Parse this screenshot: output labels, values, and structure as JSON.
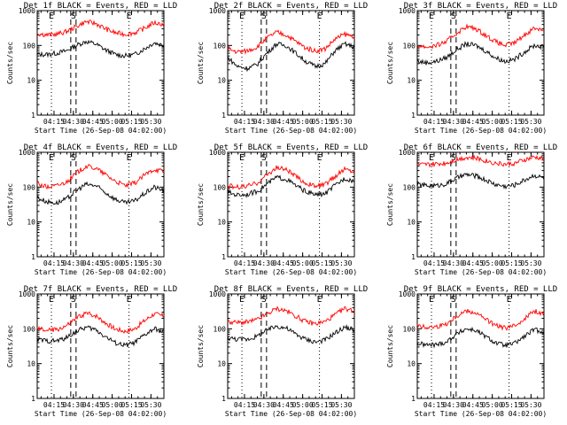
{
  "chart_data": [
    {
      "type": "line",
      "title": "Det 1f BLACK = Events, RED = LLD",
      "xlabel": "Start Time (26-Sep-08 04:02:00)",
      "ylabel": "Counts/sec",
      "yscale": "log",
      "ylim": [
        1,
        1000
      ],
      "yticks": [
        "1",
        "10",
        "100",
        "1000"
      ],
      "xlim": [
        "04:02",
        "05:40"
      ],
      "xticks": [
        "04:15",
        "04:30",
        "04:45",
        "05:00",
        "05:15",
        "05:30"
      ],
      "markers": [
        {
          "label": "E",
          "time": "04:13",
          "style": "dotted"
        },
        {
          "label": "S",
          "time": "04:30",
          "style": "dashed"
        },
        {
          "label": "E",
          "time": "05:13",
          "style": "dotted"
        }
      ],
      "series": [
        {
          "name": "BLACK = Events",
          "color": "#000000",
          "base": [
            55,
            55,
            60,
            70,
            100,
            130,
            110,
            75,
            55,
            50,
            55,
            80,
            120,
            100
          ]
        },
        {
          "name": "RED = LLD",
          "color": "#ff0000",
          "base": [
            220,
            200,
            210,
            250,
            350,
            480,
            430,
            300,
            230,
            210,
            230,
            310,
            450,
            400
          ]
        }
      ]
    },
    {
      "type": "line",
      "title": "Det 2f BLACK = Events, RED = LLD",
      "xlabel": "Start Time (26-Sep-08 04:02:00)",
      "ylabel": "Counts/sec",
      "yscale": "log",
      "ylim": [
        1,
        1000
      ],
      "yticks": [
        "1",
        "10",
        "100",
        "1000"
      ],
      "xlim": [
        "04:02",
        "05:40"
      ],
      "xticks": [
        "04:15",
        "04:30",
        "04:45",
        "05:00",
        "05:15",
        "05:30"
      ],
      "markers": [
        {
          "label": "E",
          "time": "04:13",
          "style": "dotted"
        },
        {
          "label": "S",
          "time": "04:30",
          "style": "dashed"
        },
        {
          "label": "E",
          "time": "05:13",
          "style": "dotted"
        }
      ],
      "series": [
        {
          "name": "BLACK = Events",
          "color": "#000000",
          "base": [
            45,
            25,
            22,
            28,
            60,
            110,
            100,
            60,
            35,
            25,
            30,
            70,
            110,
            90
          ]
        },
        {
          "name": "RED = LLD",
          "color": "#ff0000",
          "base": [
            80,
            65,
            70,
            90,
            160,
            240,
            200,
            130,
            85,
            70,
            80,
            150,
            210,
            180
          ]
        }
      ]
    },
    {
      "type": "line",
      "title": "Det 3f BLACK = Events, RED = LLD",
      "xlabel": "Start Time (26-Sep-08 04:02:00)",
      "ylabel": "Counts/sec",
      "yscale": "log",
      "ylim": [
        1,
        1000
      ],
      "yticks": [
        "1",
        "10",
        "100",
        "1000"
      ],
      "xlim": [
        "04:02",
        "05:40"
      ],
      "xticks": [
        "04:15",
        "04:30",
        "04:45",
        "05:00",
        "05:15",
        "05:30"
      ],
      "markers": [
        {
          "label": "E",
          "time": "04:13",
          "style": "dotted"
        },
        {
          "label": "S",
          "time": "04:30",
          "style": "dashed"
        },
        {
          "label": "E",
          "time": "05:13",
          "style": "dotted"
        }
      ],
      "series": [
        {
          "name": "BLACK = Events",
          "color": "#000000",
          "base": [
            35,
            32,
            35,
            45,
            75,
            110,
            100,
            70,
            45,
            35,
            40,
            65,
            100,
            90
          ]
        },
        {
          "name": "RED = LLD",
          "color": "#ff0000",
          "base": [
            100,
            90,
            100,
            130,
            220,
            350,
            300,
            200,
            130,
            100,
            120,
            200,
            320,
            280
          ]
        }
      ]
    },
    {
      "type": "line",
      "title": "Det 4f BLACK = Events, RED = LLD",
      "xlabel": "Start Time (26-Sep-08 04:02:00)",
      "ylabel": "Counts/sec",
      "yscale": "log",
      "ylim": [
        1,
        1000
      ],
      "yticks": [
        "1",
        "10",
        "100",
        "1000"
      ],
      "xlim": [
        "04:02",
        "05:40"
      ],
      "xticks": [
        "04:15",
        "04:30",
        "04:45",
        "05:00",
        "05:15",
        "05:30"
      ],
      "markers": [
        {
          "label": "E",
          "time": "04:13",
          "style": "dotted"
        },
        {
          "label": "S",
          "time": "04:30",
          "style": "dashed"
        },
        {
          "label": "E",
          "time": "05:13",
          "style": "dotted"
        }
      ],
      "series": [
        {
          "name": "BLACK = Events",
          "color": "#000000",
          "base": [
            50,
            38,
            35,
            45,
            80,
            120,
            110,
            70,
            45,
            35,
            40,
            65,
            100,
            80
          ]
        },
        {
          "name": "RED = LLD",
          "color": "#ff0000",
          "base": [
            130,
            100,
            110,
            140,
            250,
            400,
            350,
            230,
            150,
            110,
            130,
            220,
            330,
            280
          ]
        }
      ]
    },
    {
      "type": "line",
      "title": "Det 5f BLACK = Events, RED = LLD",
      "xlabel": "Start Time (26-Sep-08 04:02:00)",
      "ylabel": "Counts/sec",
      "yscale": "log",
      "ylim": [
        1,
        1000
      ],
      "yticks": [
        "1",
        "10",
        "100",
        "1000"
      ],
      "xlim": [
        "04:02",
        "05:40"
      ],
      "xticks": [
        "04:15",
        "04:30",
        "04:45",
        "05:00",
        "05:15",
        "05:30"
      ],
      "markers": [
        {
          "label": "E",
          "time": "04:13",
          "style": "dotted"
        },
        {
          "label": "S",
          "time": "04:30",
          "style": "dashed"
        },
        {
          "label": "E",
          "time": "05:13",
          "style": "dotted"
        }
      ],
      "series": [
        {
          "name": "BLACK = Events",
          "color": "#000000",
          "base": [
            70,
            60,
            62,
            75,
            120,
            190,
            170,
            110,
            75,
            60,
            65,
            110,
            180,
            150
          ]
        },
        {
          "name": "RED = LLD",
          "color": "#ff0000",
          "base": [
            110,
            100,
            105,
            130,
            220,
            360,
            320,
            200,
            130,
            105,
            120,
            200,
            330,
            280
          ]
        }
      ]
    },
    {
      "type": "line",
      "title": "Det 6f BLACK = Events, RED = LLD",
      "xlabel": "Start Time (26-Sep-08 04:02:00)",
      "ylabel": "Counts/sec",
      "yscale": "log",
      "ylim": [
        1,
        1000
      ],
      "yticks": [
        "1",
        "10",
        "100",
        "1000"
      ],
      "xlim": [
        "04:02",
        "05:40"
      ],
      "xticks": [
        "04:15",
        "04:30",
        "04:45",
        "05:00",
        "05:15",
        "05:30"
      ],
      "markers": [
        {
          "label": "E",
          "time": "04:13",
          "style": "dotted"
        },
        {
          "label": "S",
          "time": "04:30",
          "style": "dashed"
        },
        {
          "label": "E",
          "time": "05:13",
          "style": "dotted"
        }
      ],
      "series": [
        {
          "name": "BLACK = Events",
          "color": "#000000",
          "base": [
            120,
            110,
            110,
            125,
            180,
            230,
            210,
            160,
            120,
            105,
            115,
            160,
            220,
            180
          ]
        },
        {
          "name": "RED = LLD",
          "color": "#ff0000",
          "base": [
            430,
            440,
            460,
            500,
            620,
            720,
            680,
            580,
            490,
            450,
            480,
            600,
            720,
            650
          ]
        }
      ]
    },
    {
      "type": "line",
      "title": "Det 7f BLACK = Events, RED = LLD",
      "xlabel": "Start Time (26-Sep-08 04:02:00)",
      "ylabel": "Counts/sec",
      "yscale": "log",
      "ylim": [
        1,
        1000
      ],
      "yticks": [
        "1",
        "10",
        "100",
        "1000"
      ],
      "xlim": [
        "04:02",
        "05:40"
      ],
      "xticks": [
        "04:15",
        "04:30",
        "04:45",
        "05:00",
        "05:15",
        "05:30"
      ],
      "markers": [
        {
          "label": "E",
          "time": "04:13",
          "style": "dotted"
        },
        {
          "label": "S",
          "time": "04:30",
          "style": "dashed"
        },
        {
          "label": "E",
          "time": "05:13",
          "style": "dotted"
        }
      ],
      "series": [
        {
          "name": "BLACK = Events",
          "color": "#000000",
          "base": [
            50,
            45,
            45,
            55,
            85,
            110,
            95,
            60,
            40,
            33,
            40,
            65,
            100,
            80
          ]
        },
        {
          "name": "RED = LLD",
          "color": "#ff0000",
          "base": [
            100,
            90,
            95,
            120,
            200,
            280,
            240,
            150,
            100,
            85,
            100,
            170,
            270,
            230
          ]
        }
      ]
    },
    {
      "type": "line",
      "title": "Det 8f BLACK = Events, RED = LLD",
      "xlabel": "Start Time (26-Sep-08 04:02:00)",
      "ylabel": "Counts/sec",
      "yscale": "log",
      "ylim": [
        1,
        1000
      ],
      "yticks": [
        "1",
        "10",
        "100",
        "1000"
      ],
      "xlim": [
        "04:02",
        "05:40"
      ],
      "xticks": [
        "04:15",
        "04:30",
        "04:45",
        "05:00",
        "05:15",
        "05:30"
      ],
      "markers": [
        {
          "label": "E",
          "time": "04:13",
          "style": "dotted"
        },
        {
          "label": "S",
          "time": "04:30",
          "style": "dashed"
        },
        {
          "label": "E",
          "time": "05:13",
          "style": "dotted"
        }
      ],
      "series": [
        {
          "name": "BLACK = Events",
          "color": "#000000",
          "base": [
            55,
            50,
            50,
            60,
            90,
            120,
            105,
            70,
            50,
            42,
            48,
            75,
            110,
            95
          ]
        },
        {
          "name": "RED = LLD",
          "color": "#ff0000",
          "base": [
            160,
            150,
            155,
            180,
            260,
            380,
            330,
            230,
            160,
            140,
            160,
            250,
            380,
            330
          ]
        }
      ]
    },
    {
      "type": "line",
      "title": "Det 9f BLACK = Events, RED = LLD",
      "xlabel": "Start Time (26-Sep-08 04:02:00)",
      "ylabel": "Counts/sec",
      "yscale": "log",
      "ylim": [
        1,
        1000
      ],
      "yticks": [
        "1",
        "10",
        "100",
        "1000"
      ],
      "xlim": [
        "04:02",
        "05:40"
      ],
      "xticks": [
        "04:15",
        "04:30",
        "04:45",
        "05:00",
        "05:15",
        "05:30"
      ],
      "markers": [
        {
          "label": "E",
          "time": "04:13",
          "style": "dotted"
        },
        {
          "label": "S",
          "time": "04:30",
          "style": "dashed"
        },
        {
          "label": "E",
          "time": "05:13",
          "style": "dotted"
        }
      ],
      "series": [
        {
          "name": "BLACK = Events",
          "color": "#000000",
          "base": [
            38,
            34,
            35,
            42,
            70,
            100,
            90,
            60,
            40,
            33,
            38,
            60,
            95,
            80
          ]
        },
        {
          "name": "RED = LLD",
          "color": "#ff0000",
          "base": [
            120,
            110,
            115,
            140,
            230,
            330,
            290,
            190,
            125,
            105,
            120,
            200,
            320,
            270
          ]
        }
      ]
    }
  ]
}
